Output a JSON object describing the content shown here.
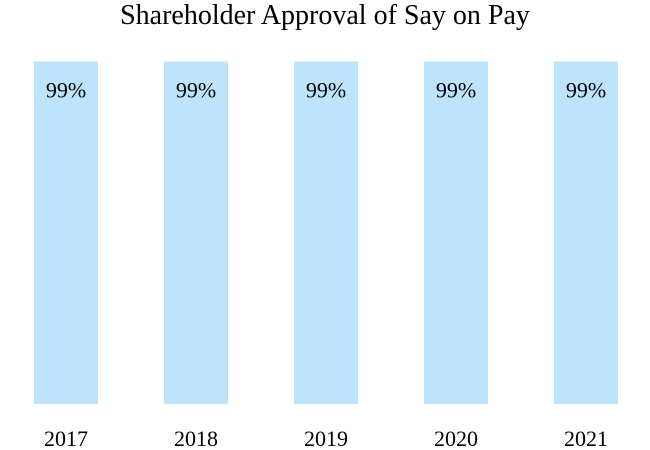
{
  "chart_data": {
    "type": "bar",
    "title": "Shareholder Approval of Say on Pay",
    "categories": [
      "2017",
      "2018",
      "2019",
      "2020",
      "2021"
    ],
    "values": [
      99,
      99,
      99,
      99,
      99
    ],
    "data_labels": [
      "99%",
      "99%",
      "99%",
      "99%",
      "99%"
    ],
    "ylim": [
      0,
      100
    ],
    "xlabel": "",
    "ylabel": "",
    "grid": false,
    "legend": "none",
    "bar_color": "#bee4fd",
    "text_color": "#000000"
  }
}
